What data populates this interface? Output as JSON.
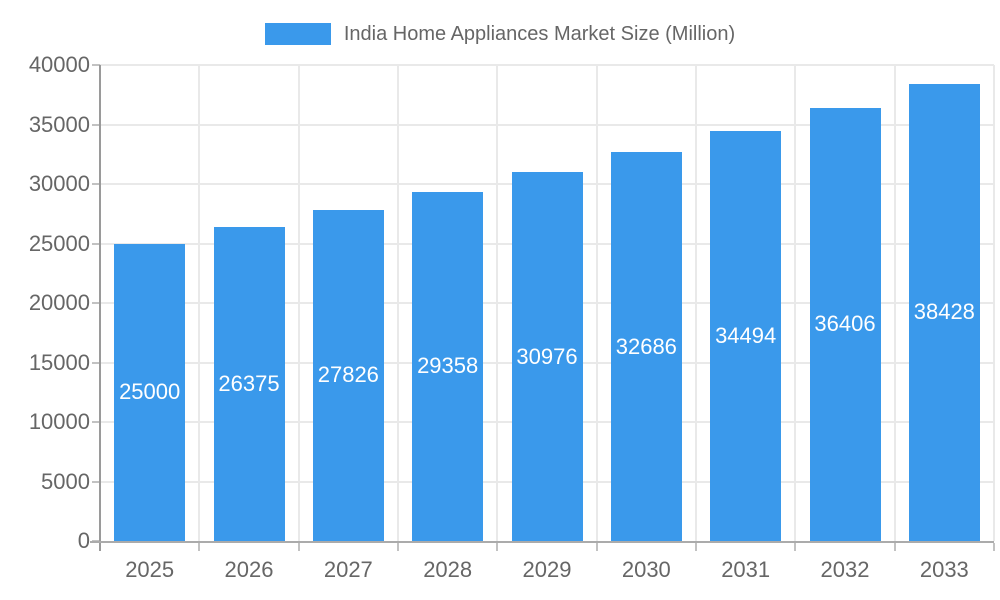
{
  "chart_data": {
    "type": "bar",
    "title": "India Home Appliances Market Size (Million)",
    "categories": [
      "2025",
      "2026",
      "2027",
      "2028",
      "2029",
      "2030",
      "2031",
      "2032",
      "2033"
    ],
    "series": [
      {
        "name": "India Home Appliances Market Size (Million)",
        "values": [
          25000,
          26375,
          27826,
          29358,
          30976,
          32686,
          34494,
          36406,
          38428
        ]
      }
    ],
    "xlabel": "",
    "ylabel": "",
    "ylim": [
      0,
      40000
    ],
    "ytick_step": 5000,
    "ytick_labels": [
      "0",
      "5000",
      "10000",
      "15000",
      "20000",
      "25000",
      "30000",
      "35000",
      "40000"
    ],
    "grid": true,
    "legend_position": "top",
    "value_labels": "inside-center",
    "colors": {
      "bar": "#3A99EB",
      "grid": "#E9E9E9",
      "axis_y": "#9A9A9A",
      "axis_x": "#ABABAB",
      "tick": "#C2C2C2",
      "text": "#666666",
      "value_label": "#FFFFFF",
      "background": "#FFFFFF"
    }
  }
}
